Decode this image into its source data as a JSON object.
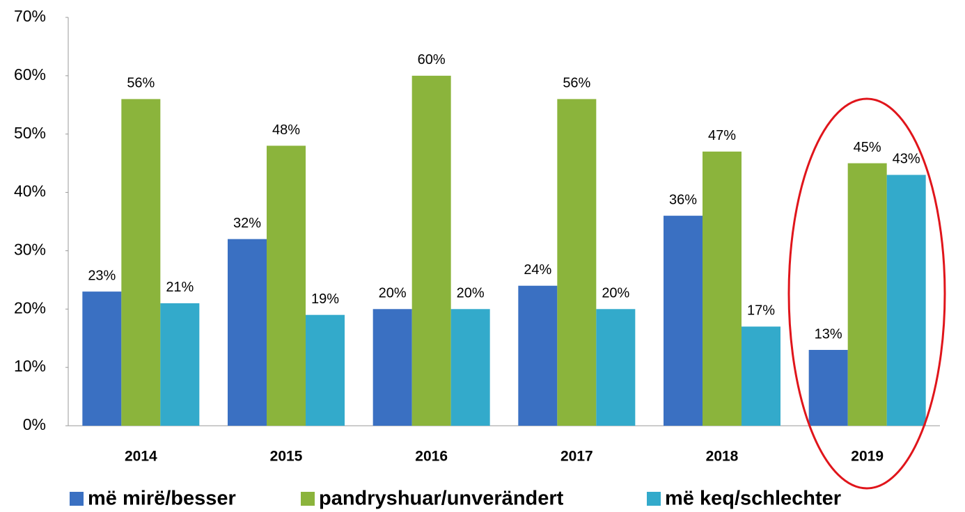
{
  "chart_data": {
    "type": "bar",
    "categories": [
      "2014",
      "2015",
      "2016",
      "2017",
      "2018",
      "2019"
    ],
    "series": [
      {
        "name": "më mirë/besser",
        "color": "#3a70c2",
        "values": [
          23,
          32,
          20,
          24,
          36,
          13
        ],
        "value_labels": [
          "23%",
          "32%",
          "20%",
          "24%",
          "36%",
          "13%"
        ]
      },
      {
        "name": "pandryshuar/unverändert",
        "color": "#8bb43c",
        "values": [
          56,
          48,
          60,
          56,
          47,
          45
        ],
        "value_labels": [
          "56%",
          "48%",
          "60%",
          "56%",
          "47%",
          "45%"
        ]
      },
      {
        "name": "më keq/schlechter",
        "color": "#33aacb",
        "values": [
          21,
          19,
          20,
          20,
          17,
          43
        ],
        "value_labels": [
          "21%",
          "19%",
          "20%",
          "20%",
          "17%",
          "43%"
        ]
      }
    ],
    "ylim": [
      0,
      70
    ],
    "yticks": [
      {
        "value": 0,
        "label": "0%"
      },
      {
        "value": 10,
        "label": "10%"
      },
      {
        "value": 20,
        "label": "20%"
      },
      {
        "value": 30,
        "label": "30%"
      },
      {
        "value": 40,
        "label": "40%"
      },
      {
        "value": 50,
        "label": "50%"
      },
      {
        "value": 60,
        "label": "60%"
      },
      {
        "value": 70,
        "label": "70%"
      }
    ],
    "legend": "bottom"
  }
}
